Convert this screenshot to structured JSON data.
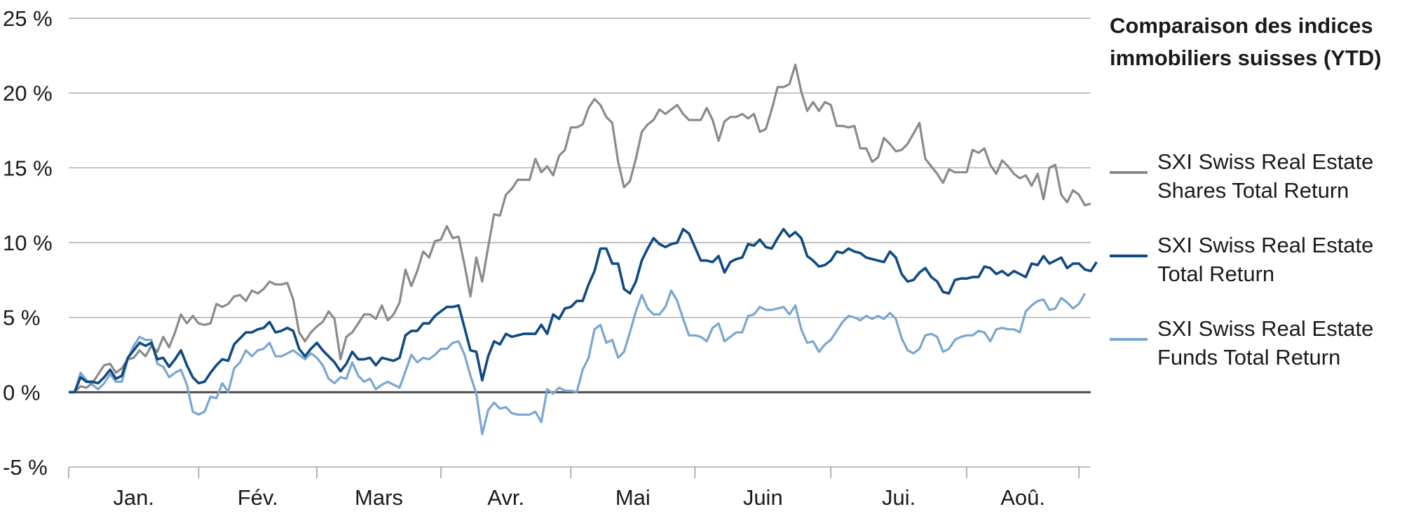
{
  "title": {
    "line1": "Comparaison des indices",
    "line2": "immobiliers suisses  (YTD)"
  },
  "chart_data": {
    "type": "line",
    "title": "Comparaison des indices immobiliers suisses (YTD)",
    "xlabel": "",
    "ylabel": "",
    "ylim": [
      -5,
      25
    ],
    "y_ticks": [
      -5,
      0,
      5,
      10,
      15,
      20,
      25
    ],
    "y_tick_labels": [
      "-5 %",
      "0 %",
      "5 %",
      "10 %",
      "15 %",
      "20 %",
      "25 %"
    ],
    "months": [
      "Jan.",
      "Fév.",
      "Mars",
      "Avr.",
      "Mai",
      "Juin",
      "Jui.",
      "Aoû."
    ],
    "month_bounds": [
      0,
      22,
      42,
      63,
      85,
      106,
      129,
      152,
      171
    ],
    "grid": true,
    "legend_position": "right",
    "series": [
      {
        "name": "SXI Swiss Real Estate Shares Total Return",
        "label_lines": [
          "SXI Swiss Real Estate",
          "Shares Total Return"
        ],
        "color": "#8a8a8a",
        "values": [
          0,
          0,
          0.4,
          0.3,
          0.6,
          1.2,
          1.8,
          1.9,
          1.3,
          1.6,
          2.2,
          2.3,
          2.8,
          2.4,
          3.1,
          2.7,
          3.7,
          3.0,
          4.0,
          5.2,
          4.6,
          5.1,
          4.6,
          4.5,
          4.6,
          5.9,
          5.7,
          5.9,
          6.4,
          6.5,
          6.1,
          6.8,
          6.6,
          6.9,
          7.4,
          7.2,
          7.2,
          7.3,
          6.2,
          4.0,
          3.4,
          4.0,
          4.4,
          4.7,
          5.4,
          4.9,
          2.2,
          3.7,
          4.0,
          4.6,
          5.2,
          5.2,
          4.9,
          5.8,
          4.8,
          5.2,
          6.0,
          8.2,
          7.1,
          8.1,
          9.4,
          9.0,
          10.1,
          10.2,
          11.1,
          10.3,
          10.4,
          8.5,
          6.4,
          9.0,
          7.4,
          9.7,
          11.9,
          11.8,
          13.2,
          13.6,
          14.2,
          14.2,
          14.2,
          15.6,
          14.7,
          15.1,
          14.5,
          15.8,
          16.2,
          17.7,
          17.7,
          17.9,
          19.0,
          19.6,
          19.2,
          18.4,
          18.0,
          15.4,
          13.7,
          14.1,
          15.6,
          17.4,
          17.9,
          18.2,
          18.9,
          18.6,
          18.9,
          19.2,
          18.6,
          18.2,
          18.2,
          18.2,
          19.0,
          18.2,
          16.8,
          18.1,
          18.4,
          18.4,
          18.6,
          18.3,
          18.6,
          17.4,
          17.6,
          18.9,
          20.4,
          20.4,
          20.6,
          21.9,
          20.1,
          18.8,
          19.4,
          18.8,
          19.4,
          19.2,
          17.8,
          17.8,
          17.7,
          17.8,
          16.3,
          16.3,
          15.4,
          15.7,
          17.0,
          16.6,
          16.1,
          16.2,
          16.6,
          17.3,
          18.0,
          15.6,
          15.1,
          14.6,
          14.0,
          14.9,
          14.7,
          14.7,
          14.7,
          16.2,
          16.0,
          16.3,
          15.2,
          14.6,
          15.5,
          15.1,
          14.6,
          14.3,
          14.5,
          13.8,
          14.6,
          12.9,
          15.0,
          15.2,
          13.2,
          12.7,
          13.5,
          13.2,
          12.5,
          12.6
        ]
      },
      {
        "name": "SXI Swiss Real Estate Total Return",
        "label_lines": [
          "SXI Swiss Real Estate",
          "Total Return"
        ],
        "color": "#0f4a82",
        "values": [
          0,
          0,
          1.0,
          0.7,
          0.7,
          0.6,
          1.0,
          1.5,
          0.9,
          1.1,
          2.3,
          2.8,
          3.3,
          3.1,
          3.3,
          2.2,
          2.3,
          1.7,
          2.2,
          2.8,
          1.8,
          1.0,
          0.6,
          0.7,
          1.3,
          1.8,
          2.2,
          2.1,
          3.2,
          3.6,
          4.0,
          4.0,
          4.2,
          4.3,
          4.7,
          4.0,
          4.1,
          4.3,
          4.1,
          2.9,
          2.4,
          2.9,
          3.3,
          2.8,
          2.4,
          2.0,
          1.4,
          1.9,
          2.7,
          2.2,
          2.2,
          2.3,
          1.8,
          2.3,
          2.2,
          2.1,
          2.3,
          3.8,
          4.1,
          4.1,
          4.6,
          4.6,
          5.1,
          5.4,
          5.7,
          5.7,
          5.8,
          4.3,
          2.8,
          2.7,
          0.8,
          2.4,
          3.4,
          3.2,
          3.9,
          3.7,
          3.8,
          3.9,
          3.9,
          3.9,
          4.5,
          3.9,
          5.2,
          4.9,
          5.6,
          5.7,
          6.1,
          6.1,
          7.2,
          8.1,
          9.6,
          9.6,
          8.6,
          8.6,
          6.9,
          6.6,
          7.4,
          8.8,
          9.6,
          10.3,
          9.9,
          9.7,
          9.9,
          10.0,
          10.9,
          10.6,
          9.7,
          8.8,
          8.8,
          8.7,
          9.1,
          8.0,
          8.7,
          8.9,
          9.0,
          9.9,
          9.8,
          10.2,
          9.7,
          9.6,
          10.3,
          10.9,
          10.4,
          10.7,
          10.3,
          9.1,
          8.8,
          8.4,
          8.5,
          8.8,
          9.4,
          9.3,
          9.6,
          9.4,
          9.3,
          9.0,
          8.9,
          8.8,
          8.7,
          9.4,
          9.0,
          7.9,
          7.4,
          7.5,
          8.0,
          8.3,
          7.7,
          7.4,
          6.7,
          6.6,
          7.5,
          7.6,
          7.6,
          7.7,
          7.7,
          8.4,
          8.3,
          7.9,
          8.1,
          7.8,
          8.1,
          7.9,
          7.7,
          8.6,
          8.5,
          9.1,
          8.6,
          8.8,
          9.0,
          8.3,
          8.6,
          8.6,
          8.2,
          8.1,
          8.7
        ]
      },
      {
        "name": "SXI Swiss Real Estate Funds Total Return",
        "label_lines": [
          "SXI Swiss Real Estate",
          "Funds Total Return"
        ],
        "color": "#7aa6cf",
        "values": [
          0,
          0,
          1.3,
          0.8,
          0.5,
          0.2,
          0.6,
          1.2,
          0.7,
          0.7,
          2.2,
          3.1,
          3.7,
          3.5,
          3.5,
          1.9,
          1.7,
          1.0,
          1.3,
          1.5,
          0.5,
          -1.3,
          -1.5,
          -1.3,
          -0.3,
          -0.4,
          0.6,
          0.0,
          1.6,
          2.0,
          2.8,
          2.4,
          2.8,
          2.9,
          3.3,
          2.4,
          2.4,
          2.6,
          2.8,
          2.5,
          2.2,
          2.6,
          2.3,
          1.8,
          0.9,
          0.6,
          1.0,
          0.9,
          2.0,
          1.1,
          0.7,
          0.9,
          0.2,
          0.5,
          0.7,
          0.5,
          0.3,
          1.4,
          2.5,
          2.0,
          2.3,
          2.2,
          2.5,
          2.9,
          2.9,
          3.3,
          3.4,
          2.5,
          1.1,
          -0.1,
          -2.8,
          -1.2,
          -0.7,
          -1.1,
          -1.0,
          -1.4,
          -1.5,
          -1.5,
          -1.5,
          -1.3,
          -2.0,
          0.2,
          -0.1,
          0.3,
          0.1,
          0.1,
          0.0,
          1.5,
          2.3,
          4.2,
          4.5,
          3.3,
          3.5,
          2.3,
          2.7,
          4.0,
          5.4,
          6.5,
          5.6,
          5.2,
          5.2,
          5.7,
          6.8,
          6.1,
          4.9,
          3.8,
          3.8,
          3.7,
          3.4,
          4.3,
          4.6,
          3.4,
          3.7,
          4.0,
          4.0,
          5.1,
          5.2,
          5.7,
          5.5,
          5.5,
          5.6,
          5.7,
          5.2,
          5.8,
          4.2,
          3.3,
          3.4,
          2.7,
          3.2,
          3.5,
          4.1,
          4.7,
          5.1,
          5.0,
          4.8,
          5.1,
          4.9,
          5.1,
          4.9,
          5.3,
          4.9,
          3.6,
          2.8,
          2.6,
          2.9,
          3.8,
          3.9,
          3.7,
          2.7,
          2.9,
          3.5,
          3.7,
          3.8,
          3.8,
          4.1,
          4.0,
          3.4,
          4.2,
          4.3,
          4.2,
          4.2,
          4.0,
          5.4,
          5.8,
          6.1,
          6.2,
          5.5,
          5.6,
          6.3,
          6.0,
          5.6,
          5.9,
          6.6
        ]
      }
    ],
    "zero_line": 0
  }
}
